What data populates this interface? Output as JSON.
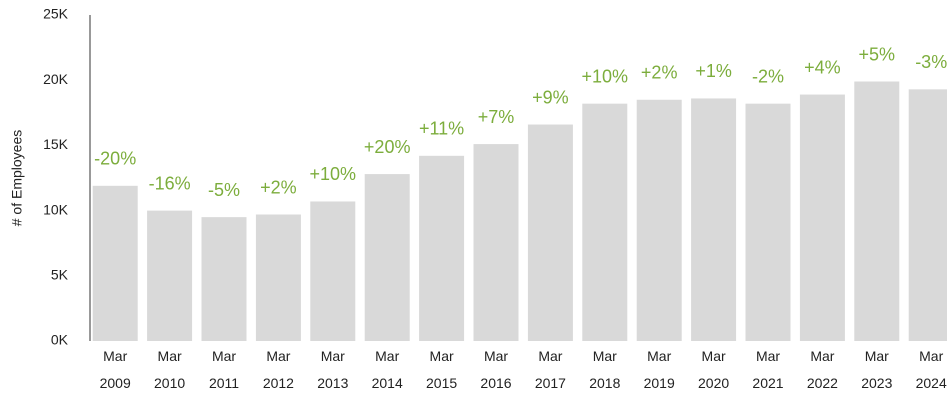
{
  "chart_data": {
    "type": "bar",
    "y_label": "# of Employees",
    "categories": [
      "Mar\n2009",
      "Mar\n2010",
      "Mar\n2011",
      "Mar\n2012",
      "Mar\n2013",
      "Mar\n2014",
      "Mar\n2015",
      "Mar\n2016",
      "Mar\n2017",
      "Mar\n2018",
      "Mar\n2019",
      "Mar\n2020",
      "Mar\n2021",
      "Mar\n2022",
      "Mar\n2023",
      "Mar\n2024"
    ],
    "values": [
      11900,
      10000,
      9500,
      9700,
      10700,
      12800,
      14200,
      15100,
      16600,
      18200,
      18500,
      18600,
      18200,
      18900,
      19900,
      19300
    ],
    "change_labels": [
      "-20%",
      "-16%",
      "-5%",
      "+2%",
      "+10%",
      "+20%",
      "+11%",
      "+7%",
      "+9%",
      "+10%",
      "+2%",
      "+1%",
      "-2%",
      "+4%",
      "+5%",
      "-3%"
    ],
    "color": "#d9d9d9",
    "label_color": "#7cad3c",
    "ylim": [
      0,
      25000
    ],
    "yticks": [
      {
        "value": 0,
        "label": "0K"
      },
      {
        "value": 5000,
        "label": "5K"
      },
      {
        "value": 10000,
        "label": "10K"
      },
      {
        "value": 15000,
        "label": "15K"
      },
      {
        "value": 20000,
        "label": "20K"
      },
      {
        "value": 25000,
        "label": "25K"
      }
    ],
    "grid": false
  }
}
